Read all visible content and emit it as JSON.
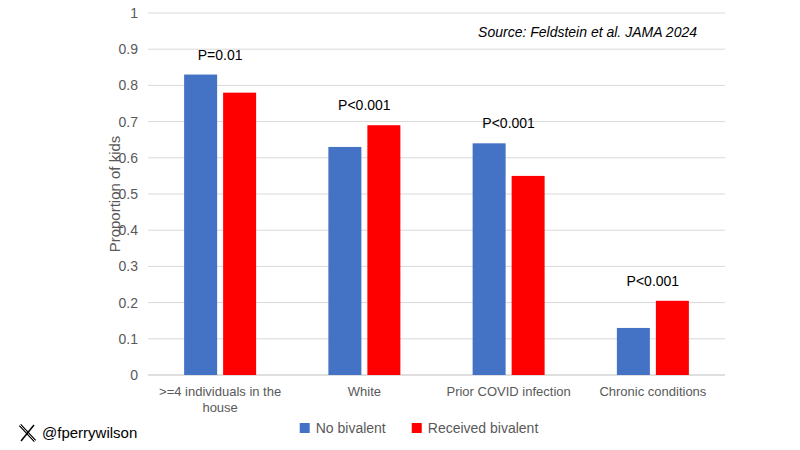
{
  "chart_data": {
    "type": "bar",
    "categories": [
      ">=4 individuals in the house",
      "White",
      "Prior COVID infection",
      "Chronic conditions"
    ],
    "series": [
      {
        "name": "No bivalent",
        "color": "#4472c4",
        "values": [
          0.83,
          0.63,
          0.64,
          0.13
        ]
      },
      {
        "name": "Received bivalent",
        "color": "#ff0000",
        "values": [
          0.78,
          0.69,
          0.55,
          0.205
        ]
      }
    ],
    "annotations": [
      "P=0.01",
      "P<0.001",
      "P<0.001",
      "P<0.001"
    ],
    "y_label": "Proportion of kids",
    "source": "Source: Feldstein et al. JAMA 2024",
    "credit": "@fperrywilson",
    "ylim": [
      0,
      1
    ],
    "yticks": [
      0,
      0.1,
      0.2,
      0.3,
      0.4,
      0.5,
      0.6,
      0.7,
      0.8,
      0.9,
      1
    ],
    "grid": true,
    "legend": "bottom"
  }
}
